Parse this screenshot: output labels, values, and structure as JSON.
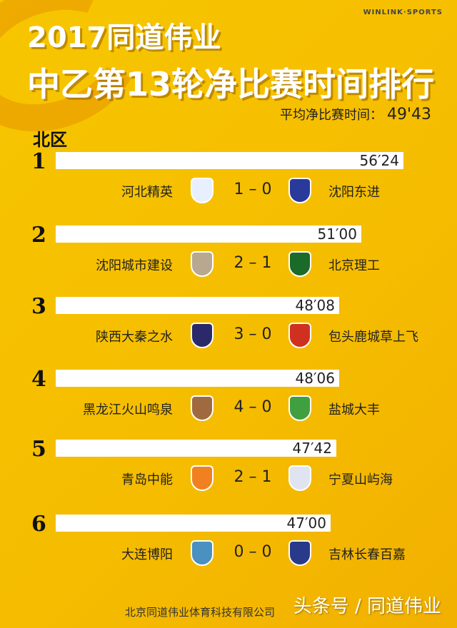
{
  "brand": "WINLINK·SPORTS",
  "title_line1": "2017同道伟业",
  "title_line2": "中乙第13轮净比赛时间排行",
  "average_label": "平均净比赛时间：",
  "average_value": "49'43",
  "zone": "北区",
  "footer": "北京同道伟业体育科技有限公司",
  "watermark": "头条号 / 同道伟业",
  "chart_data": {
    "type": "bar",
    "orientation": "horizontal",
    "categories": [
      "1",
      "2",
      "3",
      "4",
      "5",
      "6"
    ],
    "values": [
      56.4,
      51.0,
      48.133,
      48.1,
      47.7,
      47.0
    ],
    "labels": [
      "56′24",
      "51′00",
      "48′08",
      "48′06",
      "47′42",
      "47′00"
    ],
    "unit": "minutes"
  },
  "matches": [
    {
      "rank": "1",
      "home": "河北精英",
      "score": "1 – 0",
      "away": "沈阳东进",
      "home_color": "#e8f0ff",
      "away_color": "#2a3a9a"
    },
    {
      "rank": "2",
      "home": "沈阳城市建设",
      "score": "2 – 1",
      "away": "北京理工",
      "home_color": "#b8a890",
      "away_color": "#1a6a2a"
    },
    {
      "rank": "3",
      "home": "陕西大秦之水",
      "score": "3 – 0",
      "away": "包头鹿城草上飞",
      "home_color": "#2a2a6a",
      "away_color": "#d03020"
    },
    {
      "rank": "4",
      "home": "黑龙江火山鸣泉",
      "score": "4 – 0",
      "away": "盐城大丰",
      "home_color": "#a06a40",
      "away_color": "#40a040"
    },
    {
      "rank": "5",
      "home": "青岛中能",
      "score": "2 – 1",
      "away": "宁夏山屿海",
      "home_color": "#f08020",
      "away_color": "#e0e4f0"
    },
    {
      "rank": "6",
      "home": "大连博阳",
      "score": "0 – 0",
      "away": "吉林长春百嘉",
      "home_color": "#4a90c0",
      "away_color": "#2a3a8a"
    }
  ]
}
